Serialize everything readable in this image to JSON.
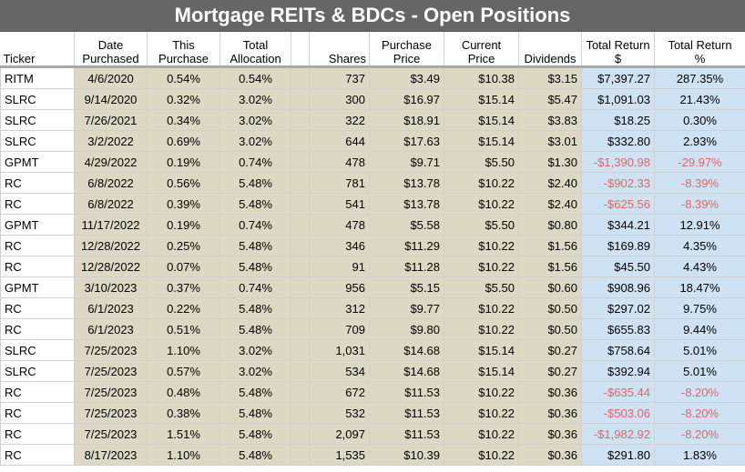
{
  "title": "Mortgage REITs & BDCs - Open Positions",
  "colors": {
    "title_bg": "#666666",
    "tan": "#ddd8c4",
    "blue": "#cfe2f3",
    "negative": "#e06666"
  },
  "headers": {
    "ticker": "Ticker",
    "date_purchased": [
      "Date",
      "Purchased"
    ],
    "this_purchase": [
      "This",
      "Purchase"
    ],
    "total_allocation": [
      "Total",
      "Allocation"
    ],
    "shares": "Shares",
    "purchase_price": [
      "Purchase",
      "Price"
    ],
    "current_price": [
      "Current",
      "Price"
    ],
    "dividends": "Dividends",
    "total_return_dollar": [
      "Total Return",
      "$"
    ],
    "total_return_pct": [
      "Total Return",
      "%"
    ]
  },
  "rows": [
    {
      "ticker": "RITM",
      "date": "4/6/2020",
      "this_purchase": "0.54%",
      "total_allocation": "0.54%",
      "shares": "737",
      "purchase_price": "$3.49",
      "current_price": "$10.38",
      "dividends": "$3.15",
      "total_return": "$7,397.27",
      "total_return_pct": "287.35%",
      "negative": false
    },
    {
      "ticker": "SLRC",
      "date": "9/14/2020",
      "this_purchase": "0.32%",
      "total_allocation": "3.02%",
      "shares": "300",
      "purchase_price": "$16.97",
      "current_price": "$15.14",
      "dividends": "$5.47",
      "total_return": "$1,091.03",
      "total_return_pct": "21.43%",
      "negative": false
    },
    {
      "ticker": "SLRC",
      "date": "7/26/2021",
      "this_purchase": "0.34%",
      "total_allocation": "3.02%",
      "shares": "322",
      "purchase_price": "$18.91",
      "current_price": "$15.14",
      "dividends": "$3.83",
      "total_return": "$18.25",
      "total_return_pct": "0.30%",
      "negative": false
    },
    {
      "ticker": "SLRC",
      "date": "3/2/2022",
      "this_purchase": "0.69%",
      "total_allocation": "3.02%",
      "shares": "644",
      "purchase_price": "$17.63",
      "current_price": "$15.14",
      "dividends": "$3.01",
      "total_return": "$332.80",
      "total_return_pct": "2.93%",
      "negative": false
    },
    {
      "ticker": "GPMT",
      "date": "4/29/2022",
      "this_purchase": "0.19%",
      "total_allocation": "0.74%",
      "shares": "478",
      "purchase_price": "$9.71",
      "current_price": "$5.50",
      "dividends": "$1.30",
      "total_return": "-$1,390.98",
      "total_return_pct": "-29.97%",
      "negative": true
    },
    {
      "ticker": "RC",
      "date": "6/8/2022",
      "this_purchase": "0.56%",
      "total_allocation": "5.48%",
      "shares": "781",
      "purchase_price": "$13.78",
      "current_price": "$10.22",
      "dividends": "$2.40",
      "total_return": "-$902.33",
      "total_return_pct": "-8.39%",
      "negative": true
    },
    {
      "ticker": "RC",
      "date": "6/8/2022",
      "this_purchase": "0.39%",
      "total_allocation": "5.48%",
      "shares": "541",
      "purchase_price": "$13.78",
      "current_price": "$10.22",
      "dividends": "$2.40",
      "total_return": "-$625.56",
      "total_return_pct": "-8.39%",
      "negative": true
    },
    {
      "ticker": "GPMT",
      "date": "11/17/2022",
      "this_purchase": "0.19%",
      "total_allocation": "0.74%",
      "shares": "478",
      "purchase_price": "$5.58",
      "current_price": "$5.50",
      "dividends": "$0.80",
      "total_return": "$344.21",
      "total_return_pct": "12.91%",
      "negative": false
    },
    {
      "ticker": "RC",
      "date": "12/28/2022",
      "this_purchase": "0.25%",
      "total_allocation": "5.48%",
      "shares": "346",
      "purchase_price": "$11.29",
      "current_price": "$10.22",
      "dividends": "$1.56",
      "total_return": "$169.89",
      "total_return_pct": "4.35%",
      "negative": false
    },
    {
      "ticker": "RC",
      "date": "12/28/2022",
      "this_purchase": "0.07%",
      "total_allocation": "5.48%",
      "shares": "91",
      "purchase_price": "$11.28",
      "current_price": "$10.22",
      "dividends": "$1.56",
      "total_return": "$45.50",
      "total_return_pct": "4.43%",
      "negative": false
    },
    {
      "ticker": "GPMT",
      "date": "3/10/2023",
      "this_purchase": "0.37%",
      "total_allocation": "0.74%",
      "shares": "956",
      "purchase_price": "$5.15",
      "current_price": "$5.50",
      "dividends": "$0.60",
      "total_return": "$908.96",
      "total_return_pct": "18.47%",
      "negative": false
    },
    {
      "ticker": "RC",
      "date": "6/1/2023",
      "this_purchase": "0.22%",
      "total_allocation": "5.48%",
      "shares": "312",
      "purchase_price": "$9.77",
      "current_price": "$10.22",
      "dividends": "$0.50",
      "total_return": "$297.02",
      "total_return_pct": "9.75%",
      "negative": false
    },
    {
      "ticker": "RC",
      "date": "6/1/2023",
      "this_purchase": "0.51%",
      "total_allocation": "5.48%",
      "shares": "709",
      "purchase_price": "$9.80",
      "current_price": "$10.22",
      "dividends": "$0.50",
      "total_return": "$655.83",
      "total_return_pct": "9.44%",
      "negative": false
    },
    {
      "ticker": "SLRC",
      "date": "7/25/2023",
      "this_purchase": "1.10%",
      "total_allocation": "3.02%",
      "shares": "1,031",
      "purchase_price": "$14.68",
      "current_price": "$15.14",
      "dividends": "$0.27",
      "total_return": "$758.64",
      "total_return_pct": "5.01%",
      "negative": false
    },
    {
      "ticker": "SLRC",
      "date": "7/25/2023",
      "this_purchase": "0.57%",
      "total_allocation": "3.02%",
      "shares": "534",
      "purchase_price": "$14.68",
      "current_price": "$15.14",
      "dividends": "$0.27",
      "total_return": "$392.94",
      "total_return_pct": "5.01%",
      "negative": false
    },
    {
      "ticker": "RC",
      "date": "7/25/2023",
      "this_purchase": "0.48%",
      "total_allocation": "5.48%",
      "shares": "672",
      "purchase_price": "$11.53",
      "current_price": "$10.22",
      "dividends": "$0.36",
      "total_return": "-$635.44",
      "total_return_pct": "-8.20%",
      "negative": true
    },
    {
      "ticker": "RC",
      "date": "7/25/2023",
      "this_purchase": "0.38%",
      "total_allocation": "5.48%",
      "shares": "532",
      "purchase_price": "$11.53",
      "current_price": "$10.22",
      "dividends": "$0.36",
      "total_return": "-$503.06",
      "total_return_pct": "-8.20%",
      "negative": true
    },
    {
      "ticker": "RC",
      "date": "7/25/2023",
      "this_purchase": "1.51%",
      "total_allocation": "5.48%",
      "shares": "2,097",
      "purchase_price": "$11.53",
      "current_price": "$10.22",
      "dividends": "$0.36",
      "total_return": "-$1,982.92",
      "total_return_pct": "-8.20%",
      "negative": true
    },
    {
      "ticker": "RC",
      "date": "8/17/2023",
      "this_purchase": "1.10%",
      "total_allocation": "5.48%",
      "shares": "1,535",
      "purchase_price": "$10.39",
      "current_price": "$10.22",
      "dividends": "$0.36",
      "total_return": "$291.80",
      "total_return_pct": "1.83%",
      "negative": false
    }
  ]
}
